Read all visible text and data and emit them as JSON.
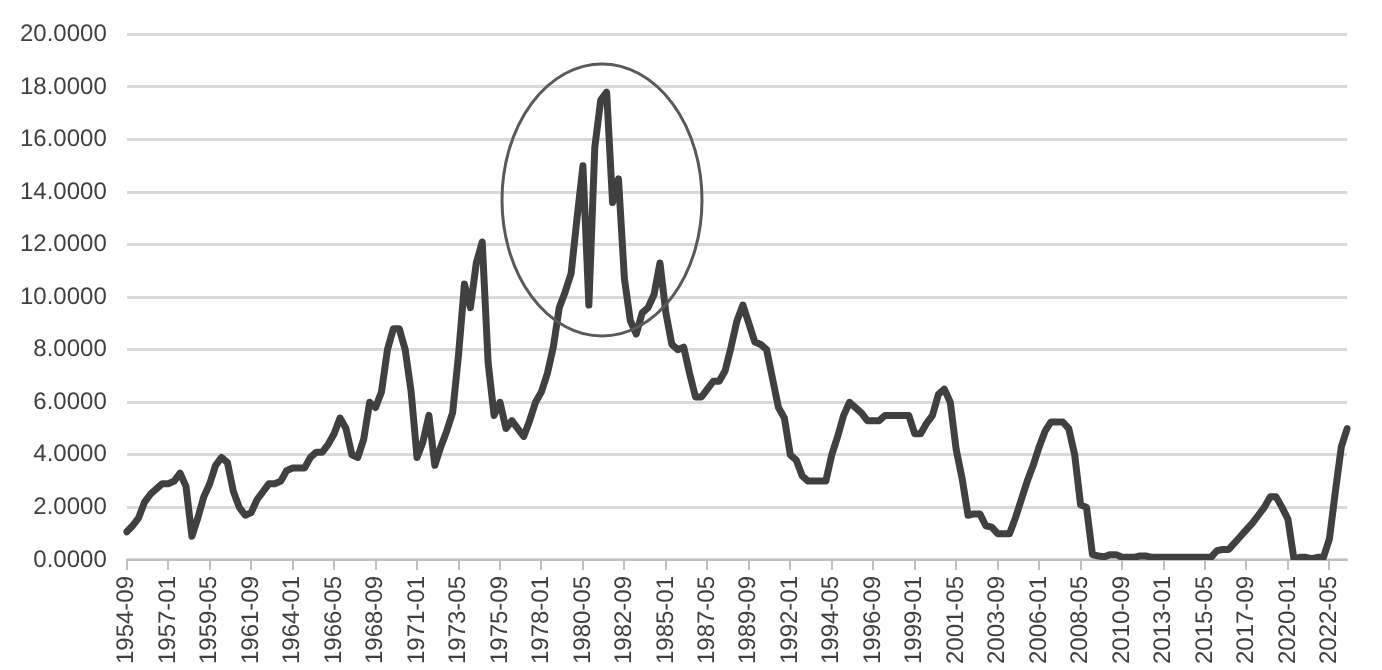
{
  "chart_data": {
    "type": "line",
    "categories": [
      "1954-09",
      null,
      null,
      null,
      null,
      null,
      null,
      "1957-01",
      null,
      null,
      null,
      null,
      null,
      null,
      "1959-05",
      null,
      null,
      null,
      null,
      null,
      null,
      "1961-09",
      null,
      null,
      null,
      null,
      null,
      null,
      "1964-01",
      null,
      null,
      null,
      null,
      null,
      null,
      "1966-05",
      null,
      null,
      null,
      null,
      null,
      null,
      "1968-09",
      null,
      null,
      null,
      null,
      null,
      null,
      "1971-01",
      null,
      null,
      null,
      null,
      null,
      null,
      "1973-05",
      null,
      null,
      null,
      null,
      null,
      null,
      "1975-09",
      null,
      null,
      null,
      null,
      null,
      null,
      "1978-01",
      null,
      null,
      null,
      null,
      null,
      null,
      "1980-05",
      null,
      null,
      null,
      null,
      null,
      null,
      "1982-09",
      null,
      null,
      null,
      null,
      null,
      null,
      "1985-01",
      null,
      null,
      null,
      null,
      null,
      null,
      "1987-05",
      null,
      null,
      null,
      null,
      null,
      null,
      "1989-09",
      null,
      null,
      null,
      null,
      null,
      null,
      "1992-01",
      null,
      null,
      null,
      null,
      null,
      null,
      "1994-05",
      null,
      null,
      null,
      null,
      null,
      null,
      "1996-09",
      null,
      null,
      null,
      null,
      null,
      null,
      "1999-01",
      null,
      null,
      null,
      null,
      null,
      null,
      "2001-05",
      null,
      null,
      null,
      null,
      null,
      null,
      "2003-09",
      null,
      null,
      null,
      null,
      null,
      null,
      "2006-01",
      null,
      null,
      null,
      null,
      null,
      null,
      "2008-05",
      null,
      null,
      null,
      null,
      null,
      null,
      "2010-09",
      null,
      null,
      null,
      null,
      null,
      null,
      "2013-01",
      null,
      null,
      null,
      null,
      null,
      null,
      "2015-05",
      null,
      null,
      null,
      null,
      null,
      null,
      "2017-09",
      null,
      null,
      null,
      null,
      null,
      null,
      "2020-01",
      null,
      null,
      null,
      null,
      null,
      null,
      "2022-05",
      null,
      null,
      null
    ],
    "series": [
      {
        "color": "#404040",
        "values": [
          1.07,
          1.3,
          1.6,
          2.2,
          2.5,
          2.7,
          2.9,
          2.9,
          3.0,
          3.3,
          2.8,
          0.9,
          1.6,
          2.4,
          2.9,
          3.6,
          3.9,
          3.7,
          2.6,
          2.0,
          1.7,
          1.8,
          2.3,
          2.6,
          2.9,
          2.9,
          3.0,
          3.4,
          3.5,
          3.5,
          3.5,
          3.9,
          4.1,
          4.1,
          4.4,
          4.8,
          5.4,
          5.0,
          4.0,
          3.9,
          4.6,
          6.0,
          5.8,
          6.4,
          8.0,
          8.8,
          8.8,
          8.0,
          6.4,
          3.9,
          4.5,
          5.5,
          3.6,
          4.3,
          4.9,
          5.6,
          7.8,
          10.5,
          9.6,
          11.3,
          12.1,
          7.5,
          5.5,
          6.0,
          5.0,
          5.3,
          5.0,
          4.7,
          5.3,
          6.0,
          6.4,
          7.1,
          8.1,
          9.6,
          10.2,
          10.9,
          13.0,
          15.0,
          9.7,
          15.7,
          17.5,
          17.8,
          13.6,
          14.5,
          10.7,
          9.1,
          8.6,
          9.4,
          9.6,
          10.1,
          11.3,
          9.4,
          8.2,
          8.0,
          8.1,
          7.1,
          6.2,
          6.2,
          6.5,
          6.8,
          6.8,
          7.2,
          8.1,
          9.1,
          9.7,
          9.0,
          8.3,
          8.2,
          8.0,
          6.9,
          5.8,
          5.4,
          4.0,
          3.8,
          3.2,
          3.0,
          3.0,
          3.0,
          3.0,
          4.0,
          4.7,
          5.5,
          6.0,
          5.8,
          5.6,
          5.3,
          5.3,
          5.3,
          5.5,
          5.5,
          5.5,
          5.5,
          5.5,
          4.8,
          4.8,
          5.2,
          5.5,
          6.3,
          6.5,
          6.0,
          4.2,
          3.1,
          1.7,
          1.75,
          1.75,
          1.3,
          1.25,
          1.0,
          1.0,
          1.0,
          1.6,
          2.3,
          3.0,
          3.6,
          4.3,
          4.9,
          5.25,
          5.25,
          5.25,
          5.0,
          4.0,
          2.1,
          2.0,
          0.2,
          0.15,
          0.12,
          0.2,
          0.2,
          0.1,
          0.1,
          0.1,
          0.15,
          0.15,
          0.1,
          0.1,
          0.1,
          0.1,
          0.1,
          0.1,
          0.1,
          0.1,
          0.1,
          0.1,
          0.1,
          0.35,
          0.4,
          0.4,
          0.65,
          0.9,
          1.15,
          1.4,
          1.7,
          2.0,
          2.4,
          2.4,
          2.0,
          1.55,
          0.05,
          0.1,
          0.1,
          0.05,
          0.1,
          0.1,
          0.8,
          2.6,
          4.3,
          5.0
        ]
      }
    ],
    "ylim": [
      0,
      20
    ],
    "yticks": [
      {
        "value": 0,
        "label": "0.0000"
      },
      {
        "value": 2,
        "label": "2.0000"
      },
      {
        "value": 4,
        "label": "4.0000"
      },
      {
        "value": 6,
        "label": "6.0000"
      },
      {
        "value": 8,
        "label": "8.0000"
      },
      {
        "value": 10,
        "label": "10.0000"
      },
      {
        "value": 12,
        "label": "12.0000"
      },
      {
        "value": 14,
        "label": "14.0000"
      },
      {
        "value": 16,
        "label": "16.0000"
      },
      {
        "value": 18,
        "label": "18.0000"
      },
      {
        "value": 20,
        "label": "20.0000"
      }
    ],
    "grid": "y",
    "legend": false,
    "marker": "none",
    "line_style": "solid"
  }
}
